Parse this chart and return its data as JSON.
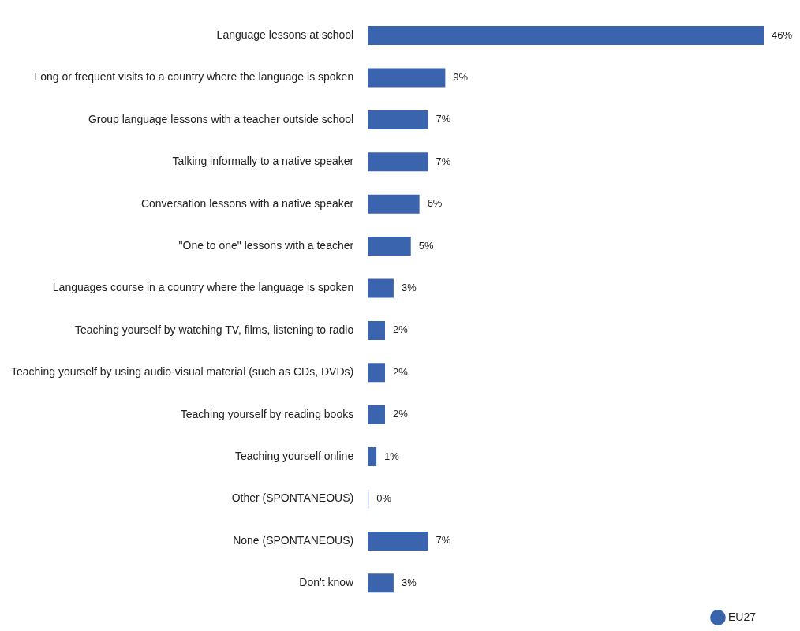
{
  "chart_data": {
    "type": "bar",
    "orientation": "horizontal",
    "legend": "bottom right",
    "categories": [
      "Language lessons at school",
      "Long or frequent visits to a country where the language is spoken",
      "Group language lessons with a teacher outside school",
      "Talking informally to a native speaker",
      "Conversation lessons with a native speaker",
      "\"One to one\" lessons with a teacher",
      "Languages course in a country where the language is spoken",
      "Teaching yourself by watching TV, films, listening to radio",
      "Teaching yourself by using audio-visual material (such as CDs, DVDs)",
      "Teaching yourself by reading books",
      "Teaching yourself online",
      "Other (SPONTANEOUS)",
      "None (SPONTANEOUS)",
      "Don't know"
    ],
    "series": [
      {
        "name": "EU27",
        "color": "#3a64ad",
        "values": [
          46,
          9,
          7,
          7,
          6,
          5,
          3,
          2,
          2,
          2,
          1,
          0,
          7,
          3
        ],
        "value_labels": [
          "46%",
          "9%",
          "7%",
          "7%",
          "6%",
          "5%",
          "3%",
          "2%",
          "2%",
          "2%",
          "1%",
          "0%",
          "7%",
          "3%"
        ]
      }
    ]
  }
}
